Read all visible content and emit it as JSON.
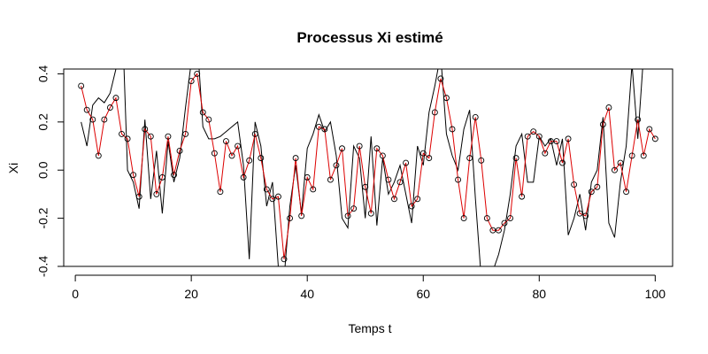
{
  "chart_data": {
    "type": "line",
    "title": "Processus Xi estimé",
    "xlabel": "Temps t",
    "ylabel": "Xi",
    "xlim": [
      -2,
      103
    ],
    "ylim": [
      -0.4,
      0.42
    ],
    "x_ticks": [
      0,
      20,
      40,
      60,
      80,
      100
    ],
    "y_ticks": [
      -0.4,
      -0.2,
      0.0,
      0.2,
      0.4
    ],
    "y_tick_labels": [
      "-0.4",
      "-0.2",
      "0.0",
      "0.2",
      "0.4"
    ],
    "grid": false,
    "legend": "none",
    "series": [
      {
        "style": "line",
        "color": "#000000",
        "x": [
          1,
          2,
          3,
          4,
          5,
          6,
          7,
          8,
          9,
          10,
          11,
          12,
          13,
          14,
          15,
          16,
          17,
          18,
          19,
          20,
          21,
          22,
          23,
          24,
          25,
          26,
          27,
          28,
          29,
          30,
          31,
          32,
          33,
          34,
          35,
          36,
          37,
          38,
          39,
          40,
          41,
          42,
          43,
          44,
          45,
          46,
          47,
          48,
          49,
          50,
          51,
          52,
          53,
          54,
          55,
          56,
          57,
          58,
          59,
          60,
          61,
          62,
          63,
          64,
          65,
          66,
          67,
          68,
          69,
          70,
          71,
          72,
          73,
          74,
          75,
          76,
          77,
          78,
          79,
          80,
          81,
          82,
          83,
          84,
          85,
          86,
          87,
          88,
          89,
          90,
          91,
          92,
          93,
          94,
          95,
          96,
          97,
          98,
          99,
          100
        ],
        "values": [
          0.2,
          0.1,
          0.27,
          0.3,
          0.28,
          0.32,
          0.42,
          0.7,
          0.0,
          -0.05,
          -0.16,
          0.21,
          -0.12,
          0.08,
          -0.18,
          0.12,
          -0.05,
          0.05,
          0.26,
          0.45,
          0.55,
          0.18,
          0.13,
          0.13,
          0.14,
          0.16,
          0.18,
          0.2,
          0.02,
          -0.37,
          0.2,
          0.1,
          -0.15,
          -0.05,
          -0.4,
          -0.45,
          -0.15,
          0.02,
          -0.18,
          0.09,
          0.15,
          0.23,
          0.16,
          0.2,
          0.06,
          -0.2,
          -0.24,
          0.1,
          0.05,
          -0.2,
          0.14,
          -0.23,
          0.05,
          -0.1,
          -0.05,
          0.02,
          -0.1,
          -0.22,
          0.1,
          0.02,
          0.24,
          0.35,
          0.48,
          0.15,
          0.06,
          0.0,
          0.17,
          0.25,
          -0.12,
          -0.45,
          -0.5,
          -0.42,
          -0.35,
          -0.25,
          -0.1,
          0.1,
          0.15,
          -0.05,
          -0.05,
          0.14,
          0.1,
          0.13,
          0.02,
          0.13,
          -0.27,
          -0.2,
          -0.1,
          -0.25,
          -0.05,
          0.0,
          0.22,
          -0.22,
          -0.28,
          -0.05,
          0.1,
          0.44,
          0.13,
          0.48,
          0.44,
          0.42
        ]
      },
      {
        "style": "line+points",
        "color": "#dd0000",
        "marker": "open-circle",
        "marker_color": "#000000",
        "x": [
          1,
          2,
          3,
          4,
          5,
          6,
          7,
          8,
          9,
          10,
          11,
          12,
          13,
          14,
          15,
          16,
          17,
          18,
          19,
          20,
          21,
          22,
          23,
          24,
          25,
          26,
          27,
          28,
          29,
          30,
          31,
          32,
          33,
          34,
          35,
          36,
          37,
          38,
          39,
          40,
          41,
          42,
          43,
          44,
          45,
          46,
          47,
          48,
          49,
          50,
          51,
          52,
          53,
          54,
          55,
          56,
          57,
          58,
          59,
          60,
          61,
          62,
          63,
          64,
          65,
          66,
          67,
          68,
          69,
          70,
          71,
          72,
          73,
          74,
          75,
          76,
          77,
          78,
          79,
          80,
          81,
          82,
          83,
          84,
          85,
          86,
          87,
          88,
          89,
          90,
          91,
          92,
          93,
          94,
          95,
          96,
          97,
          98,
          99,
          100
        ],
        "values": [
          0.35,
          0.25,
          0.21,
          0.06,
          0.21,
          0.26,
          0.3,
          0.15,
          0.13,
          -0.02,
          -0.11,
          0.17,
          0.14,
          -0.1,
          -0.03,
          0.14,
          -0.02,
          0.08,
          0.15,
          0.37,
          0.4,
          0.24,
          0.21,
          0.07,
          -0.09,
          0.12,
          0.06,
          0.1,
          -0.03,
          0.04,
          0.15,
          0.05,
          -0.08,
          -0.12,
          -0.11,
          -0.37,
          -0.2,
          0.05,
          -0.19,
          -0.03,
          -0.08,
          0.18,
          0.17,
          -0.04,
          0.02,
          0.09,
          -0.19,
          -0.16,
          0.1,
          -0.07,
          -0.18,
          0.09,
          0.06,
          -0.04,
          -0.12,
          -0.05,
          0.03,
          -0.15,
          -0.12,
          0.07,
          0.05,
          0.24,
          0.38,
          0.3,
          0.17,
          -0.04,
          -0.2,
          0.05,
          0.22,
          0.04,
          -0.2,
          -0.25,
          -0.25,
          -0.22,
          -0.2,
          0.05,
          -0.11,
          0.14,
          0.16,
          0.14,
          0.07,
          0.12,
          0.12,
          0.03,
          0.13,
          -0.06,
          -0.18,
          -0.19,
          -0.09,
          -0.07,
          0.19,
          0.26,
          0.0,
          0.03,
          -0.09,
          0.06,
          0.21,
          0.06,
          0.17,
          0.13
        ]
      }
    ]
  }
}
